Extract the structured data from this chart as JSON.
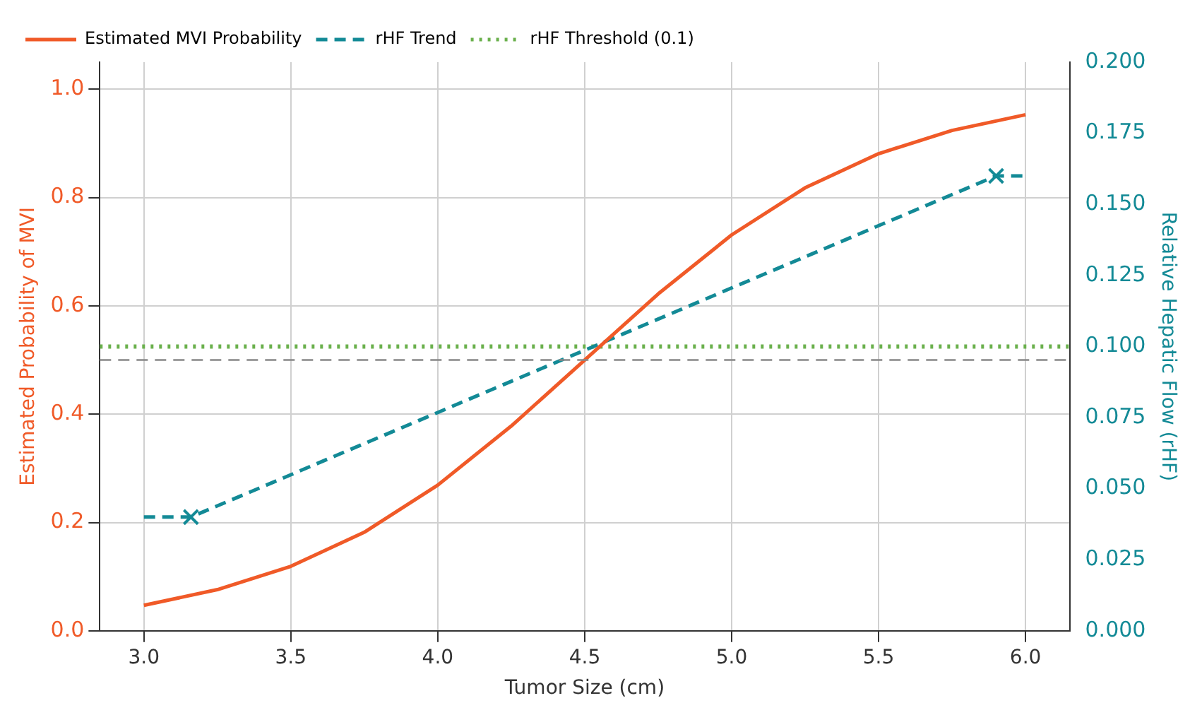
{
  "chart_data": {
    "type": "line",
    "xlabel": "Tumor Size (cm)",
    "ylabel": "Estimated Probability of MVI",
    "y2label": "Relative Hepatic Flow (rHF)",
    "xlim": [
      2.85,
      6.15
    ],
    "xticks": [
      {
        "value": 3,
        "label": "3.0"
      },
      3.5,
      {
        "value": 4,
        "label": "4.0"
      },
      4.5,
      {
        "value": 5,
        "label": "5.0"
      },
      5.5,
      {
        "value": 6,
        "label": "6.0"
      }
    ],
    "ylim": [
      0,
      1.05
    ],
    "yticks": [
      {
        "value": 0,
        "label": "0.0"
      },
      0.2,
      0.4,
      0.6,
      0.8,
      {
        "value": 1,
        "label": "1.0"
      }
    ],
    "y2lim": [
      0,
      0.2
    ],
    "y2ticks": [
      {
        "value": 0,
        "label": "0.000"
      },
      0.025,
      {
        "value": 0.05,
        "label": "0.050"
      },
      0.075,
      {
        "value": 0.1,
        "label": "0.100"
      },
      0.125,
      {
        "value": 0.15,
        "label": "0.150"
      },
      0.175,
      {
        "value": 0.2,
        "label": "0.200"
      }
    ],
    "grid": true,
    "legend": "top left",
    "ref_lines": [
      {
        "axis": "y",
        "value": 0.5,
        "color": "#888888",
        "line_style": "dashed"
      }
    ],
    "series": [
      {
        "name": "Estimated MVI Probability",
        "type": "line",
        "color": "#f05a28",
        "line_style": "solid",
        "marker": "none",
        "x": [
          3.0,
          3.25,
          3.5,
          3.75,
          4.0,
          4.25,
          4.5,
          4.75,
          5.0,
          5.25,
          5.5,
          5.75,
          6.0
        ],
        "values": [
          0.047,
          0.076,
          0.119,
          0.182,
          0.269,
          0.378,
          0.5,
          0.622,
          0.731,
          0.818,
          0.881,
          0.924,
          0.953
        ]
      },
      {
        "name": "rHF Trend",
        "type": "line",
        "axis": "y2",
        "color": "#138a96",
        "line_style": "dashed",
        "marker": "none",
        "x": [
          3.0,
          3.16,
          5.9,
          6.0
        ],
        "values": [
          0.04,
          0.04,
          0.16,
          0.16
        ]
      },
      {
        "name": "rHF Threshold (0.1)",
        "type": "line",
        "axis": "y2",
        "color": "#6ab04c",
        "line_style": "dotted",
        "marker": "none",
        "x": [
          2.85,
          6.15
        ],
        "values": [
          0.1,
          0.1
        ]
      },
      {
        "type": "scatter",
        "axis": "y2",
        "color": "#138a96",
        "marker": "cross",
        "x": [
          3.16,
          5.9
        ],
        "values": [
          0.04,
          0.16
        ]
      }
    ]
  }
}
